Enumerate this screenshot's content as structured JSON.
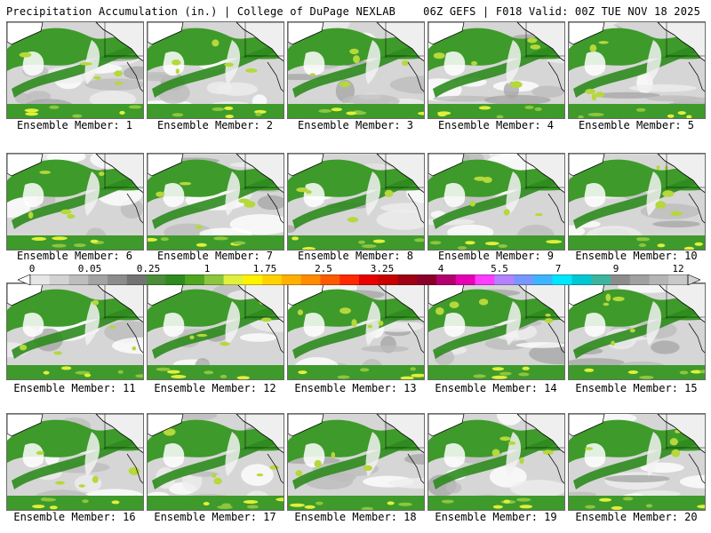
{
  "header": {
    "left": "Precipitation Accumulation (in.) | College of DuPage NEXLAB",
    "right": "06Z GEFS | F018 Valid: 00Z TUE NOV 18 2025"
  },
  "panels": [
    {
      "label": "Ensemble Member: 1"
    },
    {
      "label": "Ensemble Member: 2"
    },
    {
      "label": "Ensemble Member: 3"
    },
    {
      "label": "Ensemble Member: 4"
    },
    {
      "label": "Ensemble Member: 5"
    },
    {
      "label": "Ensemble Member: 6"
    },
    {
      "label": "Ensemble Member: 7"
    },
    {
      "label": "Ensemble Member: 8"
    },
    {
      "label": "Ensemble Member: 9"
    },
    {
      "label": "Ensemble Member: 10"
    },
    {
      "label": "Ensemble Member: 11"
    },
    {
      "label": "Ensemble Member: 12"
    },
    {
      "label": "Ensemble Member: 13"
    },
    {
      "label": "Ensemble Member: 14"
    },
    {
      "label": "Ensemble Member: 15"
    },
    {
      "label": "Ensemble Member: 16"
    },
    {
      "label": "Ensemble Member: 17"
    },
    {
      "label": "Ensemble Member: 18"
    },
    {
      "label": "Ensemble Member: 19"
    },
    {
      "label": "Ensemble Member: 20"
    }
  ],
  "colorbar": {
    "tick_labels": [
      "0",
      "0.05",
      "0.25",
      "1",
      "1.75",
      "2.5",
      "3.25",
      "4",
      "5.5",
      "7",
      "9",
      "12"
    ],
    "colors": [
      "#e6e6e6",
      "#d2d2d2",
      "#bdbdbd",
      "#a3a3a3",
      "#8c8c8c",
      "#737373",
      "#4d8c3a",
      "#2e8b1e",
      "#4fa61f",
      "#8cc63f",
      "#e0f03c",
      "#fff200",
      "#ffd200",
      "#ffb000",
      "#ff8c00",
      "#ff5a00",
      "#ff2a00",
      "#e60000",
      "#c80000",
      "#a00014",
      "#8a0028",
      "#b4006e",
      "#e600b4",
      "#ff3cff",
      "#b482ff",
      "#7896ff",
      "#3cb4ff",
      "#00e6ff",
      "#00c8d2",
      "#3cb4a0",
      "#8c8c8c",
      "#a0a0a0",
      "#b4b4b4",
      "#c8c8c8"
    ],
    "under_color": "#ffffff",
    "over_color": "#d2d2d2"
  }
}
